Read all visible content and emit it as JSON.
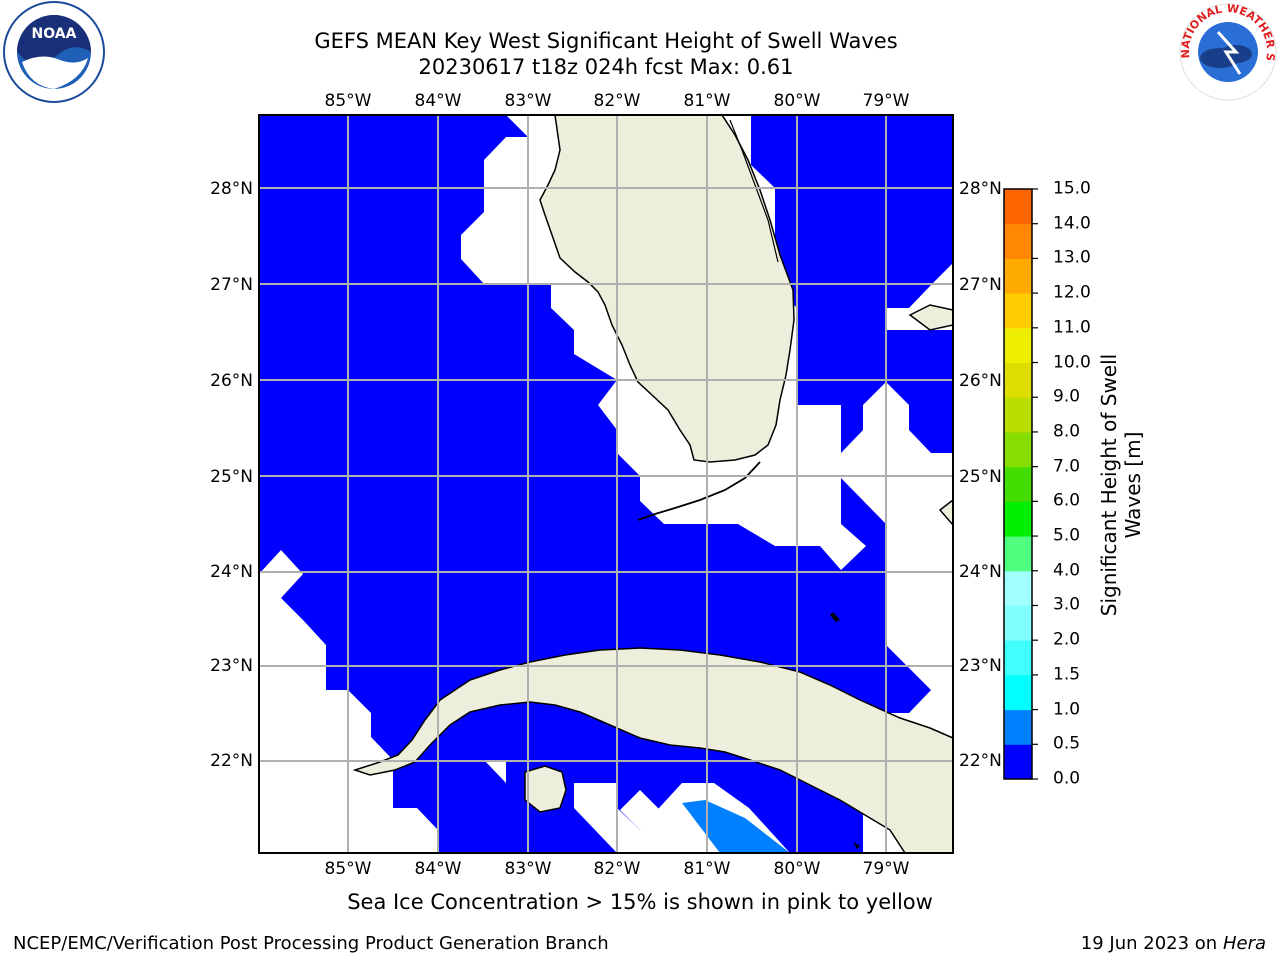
{
  "title": {
    "line1": "GEFS MEAN Key West Significant Height of Swell Waves",
    "line2": "20230617 t18z 024h fcst   Max: 0.61"
  },
  "map": {
    "lon_labels": [
      "85°W",
      "84°W",
      "83°W",
      "82°W",
      "81°W",
      "80°W",
      "79°W"
    ],
    "lat_labels": [
      "28°N",
      "27°N",
      "26°N",
      "25°N",
      "24°N",
      "23°N",
      "22°N"
    ],
    "colors": {
      "land": "#eeeedc",
      "swell_0": "#0000ff",
      "swell_05": "#0080ff",
      "grid": "#b0b0b0"
    }
  },
  "colorbar": {
    "label": "Significant Height of Swell Waves [m]",
    "ticks": [
      "0.0",
      "0.5",
      "1.0",
      "1.5",
      "2.0",
      "3.0",
      "4.0",
      "5.0",
      "6.0",
      "7.0",
      "8.0",
      "9.0",
      "10.0",
      "11.0",
      "12.0",
      "13.0",
      "14.0",
      "15.0"
    ],
    "colors": [
      "#0000ff",
      "#0080ff",
      "#00ffff",
      "#40ffff",
      "#80ffff",
      "#a0ffff",
      "#50ff80",
      "#00ee00",
      "#44dd00",
      "#88dd00",
      "#bbdd00",
      "#dddd00",
      "#eeee00",
      "#ffcc00",
      "#ffaa00",
      "#ff8800",
      "#ff6600",
      "#ff3300",
      "#ff0000"
    ]
  },
  "note": "Sea Ice Concentration > 15% is shown in pink to yellow",
  "credit": "NCEP/EMC/Verification Post Processing Product Generation Branch",
  "date": {
    "text": "19 Jun 2023 on",
    "host": "Hera"
  },
  "logos": {
    "noaa": "NOAA",
    "nws": "NATIONAL WEATHER SERVICE"
  }
}
